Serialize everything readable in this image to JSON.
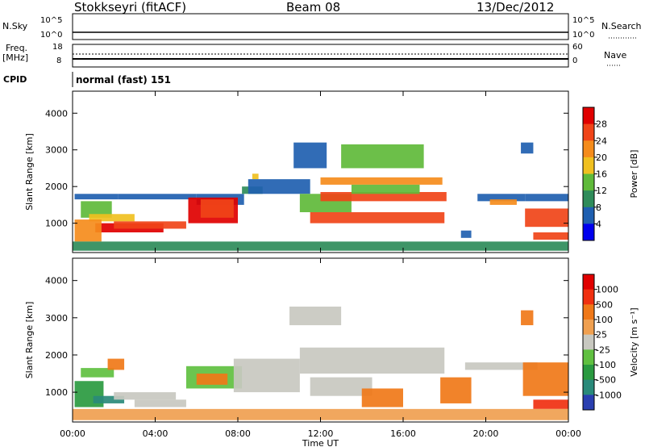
{
  "header": {
    "title": "Stokkseyri (fitACF)",
    "beam": "Beam 08",
    "date": "13/Dec/2012"
  },
  "top_panels": {
    "nsky_label": "N.Sky",
    "nsky_tick_hi": "10^5",
    "nsky_tick_lo": "10^0",
    "nsearch_label": "N.Search",
    "freq_label_1": "Freq.",
    "freq_label_2": "[MHz]",
    "freq_tick_hi": "18",
    "freq_tick_lo": "8",
    "nave_label": "Nave",
    "nave_tick_hi": "60",
    "nave_tick_lo": "0",
    "cpid_label": "CPID",
    "cpid_value": "normal (fast) 151"
  },
  "chart_data": [
    {
      "type": "heatmap",
      "name": "power",
      "ylabel": "Slant Range [km]",
      "yticks": [
        "1000",
        "2000",
        "3000",
        "4000"
      ],
      "ylim": [
        200,
        4600
      ],
      "xlim_hours": [
        0,
        24
      ],
      "colorbar": {
        "label": "Power [dB]",
        "ticks": [
          "4",
          "8",
          "12",
          "16",
          "20",
          "24",
          "28"
        ],
        "colors": [
          "#0000ee",
          "#1f5fb0",
          "#2f8c5a",
          "#5fba3a",
          "#f0c020",
          "#f58c1c",
          "#f04418",
          "#e00000"
        ]
      },
      "regions": [
        {
          "t0": 0.1,
          "t1": 2.2,
          "r0": 1650,
          "r1": 1800,
          "level": 1
        },
        {
          "t0": 0.4,
          "t1": 1.9,
          "r0": 1150,
          "r1": 1600,
          "level": 3
        },
        {
          "t0": 0.8,
          "t1": 3.0,
          "r0": 1050,
          "r1": 1250,
          "level": 4
        },
        {
          "t0": 1.1,
          "t1": 4.4,
          "r0": 750,
          "r1": 1000,
          "level": 7
        },
        {
          "t0": 2.0,
          "t1": 5.5,
          "r0": 850,
          "r1": 1050,
          "level": 6
        },
        {
          "t0": 0.1,
          "t1": 1.4,
          "r0": 500,
          "r1": 1100,
          "level": 5
        },
        {
          "t0": 2.2,
          "t1": 6.0,
          "r0": 1650,
          "r1": 1800,
          "level": 1
        },
        {
          "t0": 6.0,
          "t1": 8.3,
          "r0": 1500,
          "r1": 1800,
          "level": 1
        },
        {
          "t0": 5.6,
          "t1": 8.0,
          "r0": 1000,
          "r1": 1700,
          "level": 7
        },
        {
          "t0": 6.2,
          "t1": 7.8,
          "r0": 1150,
          "r1": 1650,
          "level": 6
        },
        {
          "t0": 8.2,
          "t1": 9.2,
          "r0": 1800,
          "r1": 2000,
          "level": 2
        },
        {
          "t0": 8.7,
          "t1": 9.0,
          "r0": 2200,
          "r1": 2350,
          "level": 4
        },
        {
          "t0": 8.5,
          "t1": 11.5,
          "r0": 1800,
          "r1": 2200,
          "level": 1
        },
        {
          "t0": 10.7,
          "t1": 12.3,
          "r0": 2500,
          "r1": 3200,
          "level": 1
        },
        {
          "t0": 11.0,
          "t1": 13.5,
          "r0": 1300,
          "r1": 1800,
          "level": 3
        },
        {
          "t0": 11.5,
          "t1": 18.0,
          "r0": 1000,
          "r1": 1300,
          "level": 6
        },
        {
          "t0": 12.0,
          "t1": 18.1,
          "r0": 1600,
          "r1": 1850,
          "level": 6
        },
        {
          "t0": 12.0,
          "t1": 17.9,
          "r0": 2050,
          "r1": 2250,
          "level": 5
        },
        {
          "t0": 13.0,
          "t1": 17.0,
          "r0": 2500,
          "r1": 3150,
          "level": 3
        },
        {
          "t0": 13.5,
          "t1": 16.8,
          "r0": 1800,
          "r1": 2050,
          "level": 3
        },
        {
          "t0": 18.8,
          "t1": 19.3,
          "r0": 600,
          "r1": 800,
          "level": 1
        },
        {
          "t0": 19.6,
          "t1": 21.9,
          "r0": 1600,
          "r1": 1800,
          "level": 1
        },
        {
          "t0": 20.2,
          "t1": 21.5,
          "r0": 1500,
          "r1": 1650,
          "level": 5
        },
        {
          "t0": 21.7,
          "t1": 22.3,
          "r0": 2900,
          "r1": 3200,
          "level": 1
        },
        {
          "t0": 21.9,
          "t1": 24.0,
          "r0": 900,
          "r1": 1400,
          "level": 6
        },
        {
          "t0": 22.3,
          "t1": 24.0,
          "r0": 550,
          "r1": 750,
          "level": 6
        },
        {
          "t0": 21.9,
          "t1": 24.0,
          "r0": 1600,
          "r1": 1800,
          "level": 1
        },
        {
          "t0": 0.0,
          "t1": 24.0,
          "r0": 250,
          "r1": 500,
          "level": 2
        }
      ]
    },
    {
      "type": "heatmap",
      "name": "velocity",
      "ylabel": "Slant Range [km]",
      "yticks": [
        "1000",
        "2000",
        "3000",
        "4000"
      ],
      "ylim": [
        200,
        4600
      ],
      "xlim_hours": [
        0,
        24
      ],
      "xticks": [
        "00:00",
        "04:00",
        "08:00",
        "12:00",
        "16:00",
        "20:00",
        "00:00"
      ],
      "xlabel": "Time UT",
      "colorbar": {
        "label": "Velocity [m s⁻¹]",
        "ticks": [
          "1000",
          "500",
          "100",
          "25",
          "-25",
          "-100",
          "-500",
          "-1000"
        ],
        "colors": [
          "#2a3fb0",
          "#2a8a7a",
          "#2a9a40",
          "#60c040",
          "#c8c8c0",
          "#f0a050",
          "#f07818",
          "#f03010",
          "#e00000"
        ]
      },
      "regions": [
        {
          "t0": 0.1,
          "t1": 1.5,
          "r0": 600,
          "r1": 1300,
          "level": 2
        },
        {
          "t0": 0.4,
          "t1": 2.0,
          "r0": 1400,
          "r1": 1650,
          "level": 3
        },
        {
          "t0": 1.0,
          "t1": 2.5,
          "r0": 700,
          "r1": 900,
          "level": 1
        },
        {
          "t0": 2.0,
          "t1": 5.0,
          "r0": 800,
          "r1": 1000,
          "level": 4
        },
        {
          "t0": 3.0,
          "t1": 5.5,
          "r0": 600,
          "r1": 800,
          "level": 4
        },
        {
          "t0": 5.5,
          "t1": 8.2,
          "r0": 1100,
          "r1": 1700,
          "level": 3
        },
        {
          "t0": 6.0,
          "t1": 7.5,
          "r0": 1200,
          "r1": 1500,
          "level": 6
        },
        {
          "t0": 1.7,
          "t1": 2.5,
          "r0": 1600,
          "r1": 1900,
          "level": 6
        },
        {
          "t0": 7.8,
          "t1": 11.0,
          "r0": 1000,
          "r1": 1900,
          "level": 4
        },
        {
          "t0": 10.5,
          "t1": 13.0,
          "r0": 2800,
          "r1": 3300,
          "level": 4
        },
        {
          "t0": 11.0,
          "t1": 18.0,
          "r0": 1500,
          "r1": 2200,
          "level": 4
        },
        {
          "t0": 11.5,
          "t1": 14.5,
          "r0": 900,
          "r1": 1400,
          "level": 4
        },
        {
          "t0": 14.0,
          "t1": 16.0,
          "r0": 600,
          "r1": 1100,
          "level": 6
        },
        {
          "t0": 17.8,
          "t1": 19.3,
          "r0": 700,
          "r1": 1400,
          "level": 6
        },
        {
          "t0": 19.0,
          "t1": 22.5,
          "r0": 1600,
          "r1": 1800,
          "level": 4
        },
        {
          "t0": 21.8,
          "t1": 24.0,
          "r0": 900,
          "r1": 1800,
          "level": 6
        },
        {
          "t0": 22.3,
          "t1": 24.0,
          "r0": 550,
          "r1": 800,
          "level": 7
        },
        {
          "t0": 21.7,
          "t1": 22.3,
          "r0": 2800,
          "r1": 3200,
          "level": 6
        },
        {
          "t0": 0.0,
          "t1": 24.0,
          "r0": 250,
          "r1": 550,
          "level": 5
        }
      ]
    }
  ]
}
